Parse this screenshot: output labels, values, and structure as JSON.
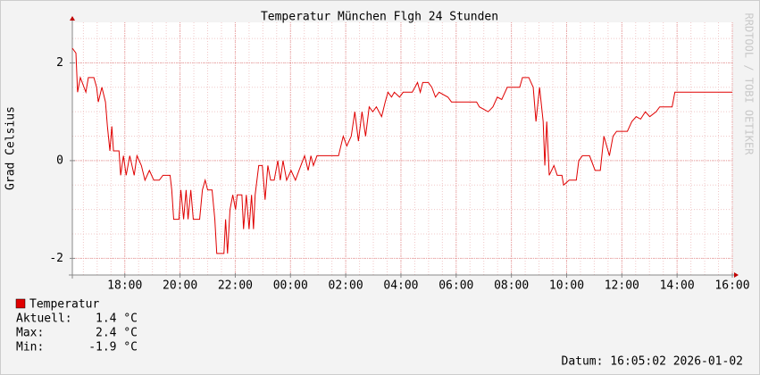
{
  "chart_data": {
    "type": "line",
    "title": "Temperatur München Flgh 24 Stunden",
    "y_label": "Grad Celsius",
    "watermark": "RRDTOOL / TOBI OETIKER",
    "xlim": [
      16.1,
      40.0
    ],
    "xticks": [
      {
        "value": 18,
        "label": "18:00"
      },
      {
        "value": 20,
        "label": "20:00"
      },
      {
        "value": 22,
        "label": "22:00"
      },
      {
        "value": 24,
        "label": "00:00"
      },
      {
        "value": 26,
        "label": "02:00"
      },
      {
        "value": 28,
        "label": "04:00"
      },
      {
        "value": 30,
        "label": "06:00"
      },
      {
        "value": 32,
        "label": "08:00"
      },
      {
        "value": 34,
        "label": "10:00"
      },
      {
        "value": 36,
        "label": "12:00"
      },
      {
        "value": 38,
        "label": "14:00"
      },
      {
        "value": 40,
        "label": "16:00"
      }
    ],
    "ylim": [
      -2.34,
      2.83
    ],
    "yticks": [
      -2,
      0,
      2
    ],
    "grid": true,
    "x": [
      16.1,
      16.23,
      16.29,
      16.39,
      16.59,
      16.68,
      16.88,
      16.98,
      17.04,
      17.17,
      17.3,
      17.37,
      17.46,
      17.53,
      17.59,
      17.79,
      17.85,
      17.95,
      18.05,
      18.18,
      18.34,
      18.44,
      18.6,
      18.73,
      18.89,
      19.05,
      19.25,
      19.38,
      19.64,
      19.7,
      19.77,
      19.96,
      20.03,
      20.13,
      20.22,
      20.29,
      20.39,
      20.48,
      20.71,
      20.81,
      20.91,
      21.0,
      21.16,
      21.26,
      21.33,
      21.59,
      21.65,
      21.72,
      21.81,
      21.91,
      22.01,
      22.07,
      22.24,
      22.3,
      22.4,
      22.5,
      22.59,
      22.66,
      22.72,
      22.85,
      22.98,
      23.08,
      23.18,
      23.28,
      23.41,
      23.54,
      23.63,
      23.73,
      23.86,
      24.02,
      24.18,
      24.31,
      24.51,
      24.64,
      24.74,
      24.83,
      24.96,
      25.74,
      25.91,
      26.04,
      26.2,
      26.33,
      26.46,
      26.59,
      26.72,
      26.85,
      26.98,
      27.11,
      27.3,
      27.43,
      27.53,
      27.66,
      27.76,
      27.95,
      28.08,
      28.41,
      28.6,
      28.7,
      28.79,
      28.99,
      29.12,
      29.25,
      29.38,
      29.7,
      29.83,
      30.35,
      30.74,
      30.84,
      31.0,
      31.16,
      31.33,
      31.49,
      31.65,
      31.85,
      32.3,
      32.4,
      32.63,
      32.79,
      32.89,
      33.02,
      33.15,
      33.21,
      33.28,
      33.37,
      33.54,
      33.66,
      33.83,
      33.89,
      34.09,
      34.35,
      34.44,
      34.57,
      34.83,
      35.03,
      35.22,
      35.35,
      35.55,
      35.68,
      35.81,
      36.2,
      36.36,
      36.52,
      36.68,
      36.85,
      37.01,
      37.24,
      37.37,
      37.82,
      37.92,
      38.15,
      39.12,
      40.0
    ],
    "series": [
      {
        "name": "Temperatur",
        "color": "#e00000",
        "values": [
          2.3,
          2.2,
          1.4,
          1.7,
          1.4,
          1.7,
          1.7,
          1.5,
          1.2,
          1.5,
          1.2,
          0.7,
          0.2,
          0.7,
          0.2,
          0.2,
          -0.3,
          0.1,
          -0.3,
          0.1,
          -0.3,
          0.1,
          -0.1,
          -0.4,
          -0.2,
          -0.4,
          -0.4,
          -0.3,
          -0.3,
          -0.6,
          -1.2,
          -1.2,
          -0.6,
          -1.2,
          -0.6,
          -1.2,
          -0.6,
          -1.2,
          -1.2,
          -0.6,
          -0.4,
          -0.6,
          -0.6,
          -1.2,
          -1.9,
          -1.9,
          -1.2,
          -1.9,
          -1.0,
          -0.7,
          -1.0,
          -0.7,
          -0.7,
          -1.4,
          -0.7,
          -1.4,
          -0.7,
          -1.4,
          -0.7,
          -0.1,
          -0.1,
          -0.8,
          -0.1,
          -0.4,
          -0.4,
          0.0,
          -0.4,
          0.0,
          -0.4,
          -0.2,
          -0.4,
          -0.2,
          0.1,
          -0.2,
          0.1,
          -0.1,
          0.1,
          0.1,
          0.5,
          0.3,
          0.5,
          1.0,
          0.4,
          1.0,
          0.5,
          1.1,
          1.0,
          1.1,
          0.9,
          1.2,
          1.4,
          1.3,
          1.4,
          1.3,
          1.4,
          1.4,
          1.6,
          1.4,
          1.6,
          1.6,
          1.5,
          1.3,
          1.4,
          1.3,
          1.2,
          1.2,
          1.2,
          1.1,
          1.05,
          1.0,
          1.1,
          1.3,
          1.25,
          1.5,
          1.5,
          1.7,
          1.7,
          1.5,
          0.8,
          1.5,
          0.8,
          -0.1,
          0.8,
          -0.3,
          -0.1,
          -0.3,
          -0.3,
          -0.5,
          -0.4,
          -0.4,
          0.0,
          0.1,
          0.1,
          -0.2,
          -0.2,
          0.5,
          0.1,
          0.5,
          0.6,
          0.6,
          0.8,
          0.9,
          0.85,
          1.0,
          0.9,
          1.0,
          1.1,
          1.1,
          1.4,
          1.4,
          1.4,
          1.4
        ]
      }
    ],
    "stats": [
      {
        "label": "Aktuell:",
        "value": "1.4 °C"
      },
      {
        "label": "Max:",
        "value": "2.4 °C"
      },
      {
        "label": "Min:",
        "value": "-1.9 °C"
      }
    ],
    "footer": "Datum: 16:05:02 2026-01-02"
  }
}
